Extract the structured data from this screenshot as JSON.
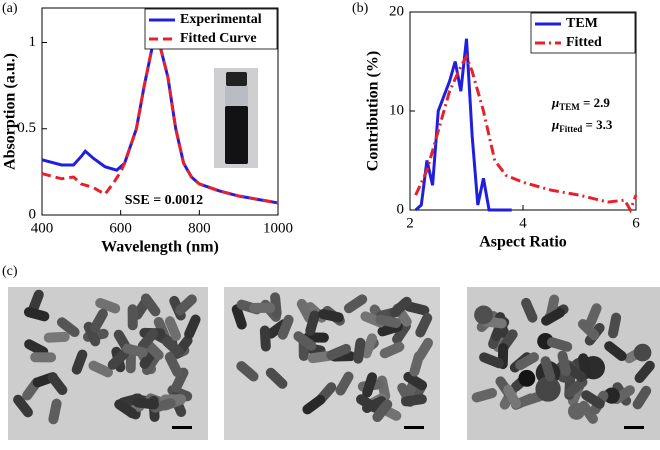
{
  "chart_data": [
    {
      "type": "line",
      "label": "(a)",
      "xlabel": "Wavelength (nm)",
      "ylabel": "Absorption (a.u.)",
      "xlim": [
        400,
        1000
      ],
      "xticks": [
        400,
        600,
        800,
        1000
      ],
      "ylim": [
        0,
        1.2
      ],
      "yticks": [
        0,
        0.5,
        1
      ],
      "legend": "upper right",
      "annotations": [
        {
          "text": "SSE = 0.0012"
        }
      ],
      "series": [
        {
          "name": "Experimental",
          "color": "#1f1fe0",
          "linestyle": "solid",
          "x": [
            400,
            450,
            480,
            500,
            510,
            530,
            560,
            590,
            610,
            640,
            660,
            680,
            690,
            700,
            720,
            740,
            760,
            780,
            800,
            850,
            900,
            950,
            1000
          ],
          "values": [
            0.32,
            0.29,
            0.29,
            0.34,
            0.37,
            0.33,
            0.28,
            0.26,
            0.3,
            0.5,
            0.75,
            0.97,
            1.0,
            0.98,
            0.8,
            0.5,
            0.3,
            0.22,
            0.18,
            0.14,
            0.11,
            0.09,
            0.07
          ]
        },
        {
          "name": "Fitted Curve",
          "color": "#e8202a",
          "linestyle": "dashed",
          "x": [
            400,
            450,
            480,
            500,
            530,
            560,
            580,
            600,
            610,
            640,
            660,
            680,
            690,
            700,
            720,
            740,
            760,
            780,
            800,
            850,
            900,
            950,
            1000
          ],
          "values": [
            0.24,
            0.21,
            0.22,
            0.18,
            0.16,
            0.12,
            0.18,
            0.25,
            0.3,
            0.5,
            0.75,
            0.97,
            1.0,
            0.98,
            0.8,
            0.5,
            0.3,
            0.22,
            0.18,
            0.14,
            0.11,
            0.09,
            0.07
          ]
        }
      ]
    },
    {
      "type": "line",
      "label": "(b)",
      "xlabel": "Aspect Ratio",
      "ylabel": "Contribution (%)",
      "xlim": [
        2,
        6
      ],
      "xticks": [
        2,
        4,
        6
      ],
      "ylim": [
        0,
        20
      ],
      "yticks": [
        0,
        10,
        20
      ],
      "legend": "upper right",
      "annotations": [
        {
          "symbol": "μ",
          "sub": "TEM",
          "text": " = 2.9"
        },
        {
          "symbol": "μ",
          "sub": "Fitted",
          "text": " = 3.3"
        }
      ],
      "series": [
        {
          "name": "TEM",
          "color": "#1f1fe0",
          "linestyle": "solid",
          "x": [
            2.1,
            2.2,
            2.3,
            2.4,
            2.5,
            2.7,
            2.8,
            2.9,
            3.0,
            3.1,
            3.2,
            3.3,
            3.4,
            3.8
          ],
          "values": [
            0,
            0.5,
            5,
            2.5,
            10,
            13,
            15,
            12,
            17.3,
            7.5,
            0.5,
            3.2,
            0,
            0
          ]
        },
        {
          "name": "Fitted",
          "color": "#e8202a",
          "linestyle": "dashdot",
          "x": [
            2.1,
            2.3,
            2.5,
            2.7,
            2.9,
            3.0,
            3.1,
            3.3,
            3.5,
            3.7,
            4.0,
            4.5,
            5.0,
            5.5,
            5.8,
            5.9,
            6.0
          ],
          "values": [
            1.5,
            4,
            8,
            12,
            14.5,
            15.5,
            14,
            10,
            5,
            3.5,
            2.8,
            2,
            1.5,
            0.8,
            1,
            0,
            1.5
          ]
        }
      ]
    }
  ],
  "images": {
    "label": "(c)"
  }
}
